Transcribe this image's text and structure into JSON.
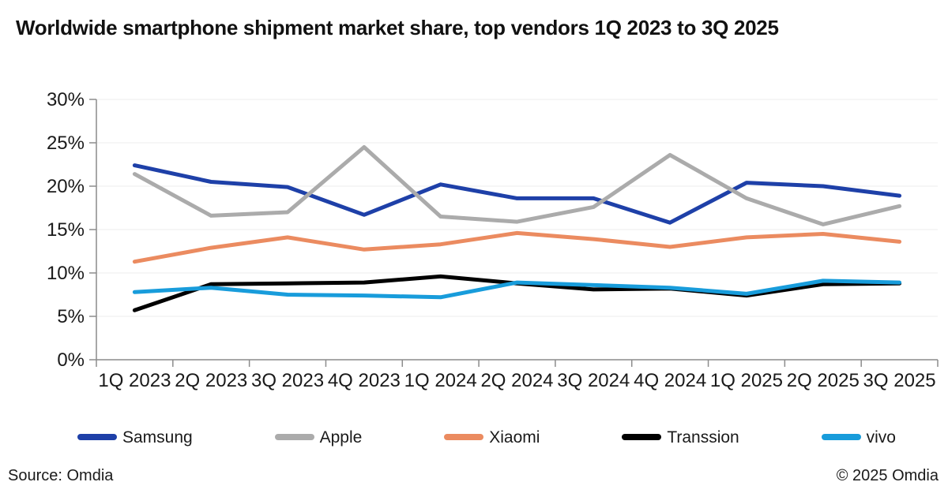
{
  "title": "Worldwide smartphone shipment market share, top vendors 1Q 2023 to 3Q 2025",
  "footer": {
    "source": "Source: Omdia",
    "copyright": "© 2025 Omdia"
  },
  "chart_data": {
    "type": "line",
    "title": "Worldwide smartphone shipment market share, top vendors 1Q 2023 to 3Q 2025",
    "categories": [
      "1Q 2023",
      "2Q 2023",
      "3Q 2023",
      "4Q 2023",
      "1Q 2024",
      "2Q 2024",
      "3Q 2024",
      "4Q 2024",
      "1Q 2025",
      "2Q 2025",
      "3Q 2025"
    ],
    "series": [
      {
        "name": "Samsung",
        "color": "#1E40A8",
        "values": [
          22.4,
          20.5,
          19.9,
          16.7,
          20.2,
          18.6,
          18.6,
          15.8,
          20.4,
          20.0,
          18.9
        ]
      },
      {
        "name": "Apple",
        "color": "#ABABAB",
        "values": [
          21.4,
          16.6,
          17.0,
          24.5,
          16.5,
          15.9,
          17.6,
          23.6,
          18.6,
          15.6,
          17.7
        ]
      },
      {
        "name": "Xiaomi",
        "color": "#EB8B60",
        "values": [
          11.3,
          12.9,
          14.1,
          12.7,
          13.3,
          14.6,
          13.9,
          13.0,
          14.1,
          14.5,
          13.6
        ]
      },
      {
        "name": "Transsion",
        "color": "#000000",
        "values": [
          5.7,
          8.7,
          8.8,
          8.9,
          9.6,
          8.8,
          8.1,
          8.2,
          7.4,
          8.7,
          8.8
        ]
      },
      {
        "name": "vivo",
        "color": "#189CDB",
        "values": [
          7.8,
          8.3,
          7.5,
          7.4,
          7.2,
          8.9,
          8.6,
          8.3,
          7.6,
          9.1,
          8.9
        ]
      }
    ],
    "xlabel": "",
    "ylabel": "",
    "ylim": [
      0,
      30
    ],
    "y_tick_step": 5,
    "y_tick_labels": [
      "0%",
      "5%",
      "10%",
      "15%",
      "20%",
      "25%",
      "30%"
    ],
    "grid": true,
    "legend_position": "bottom",
    "grid_color": "#ECECEC",
    "axis_color": "#8C8C8C",
    "tick_label_color": "#1a1a1a"
  }
}
